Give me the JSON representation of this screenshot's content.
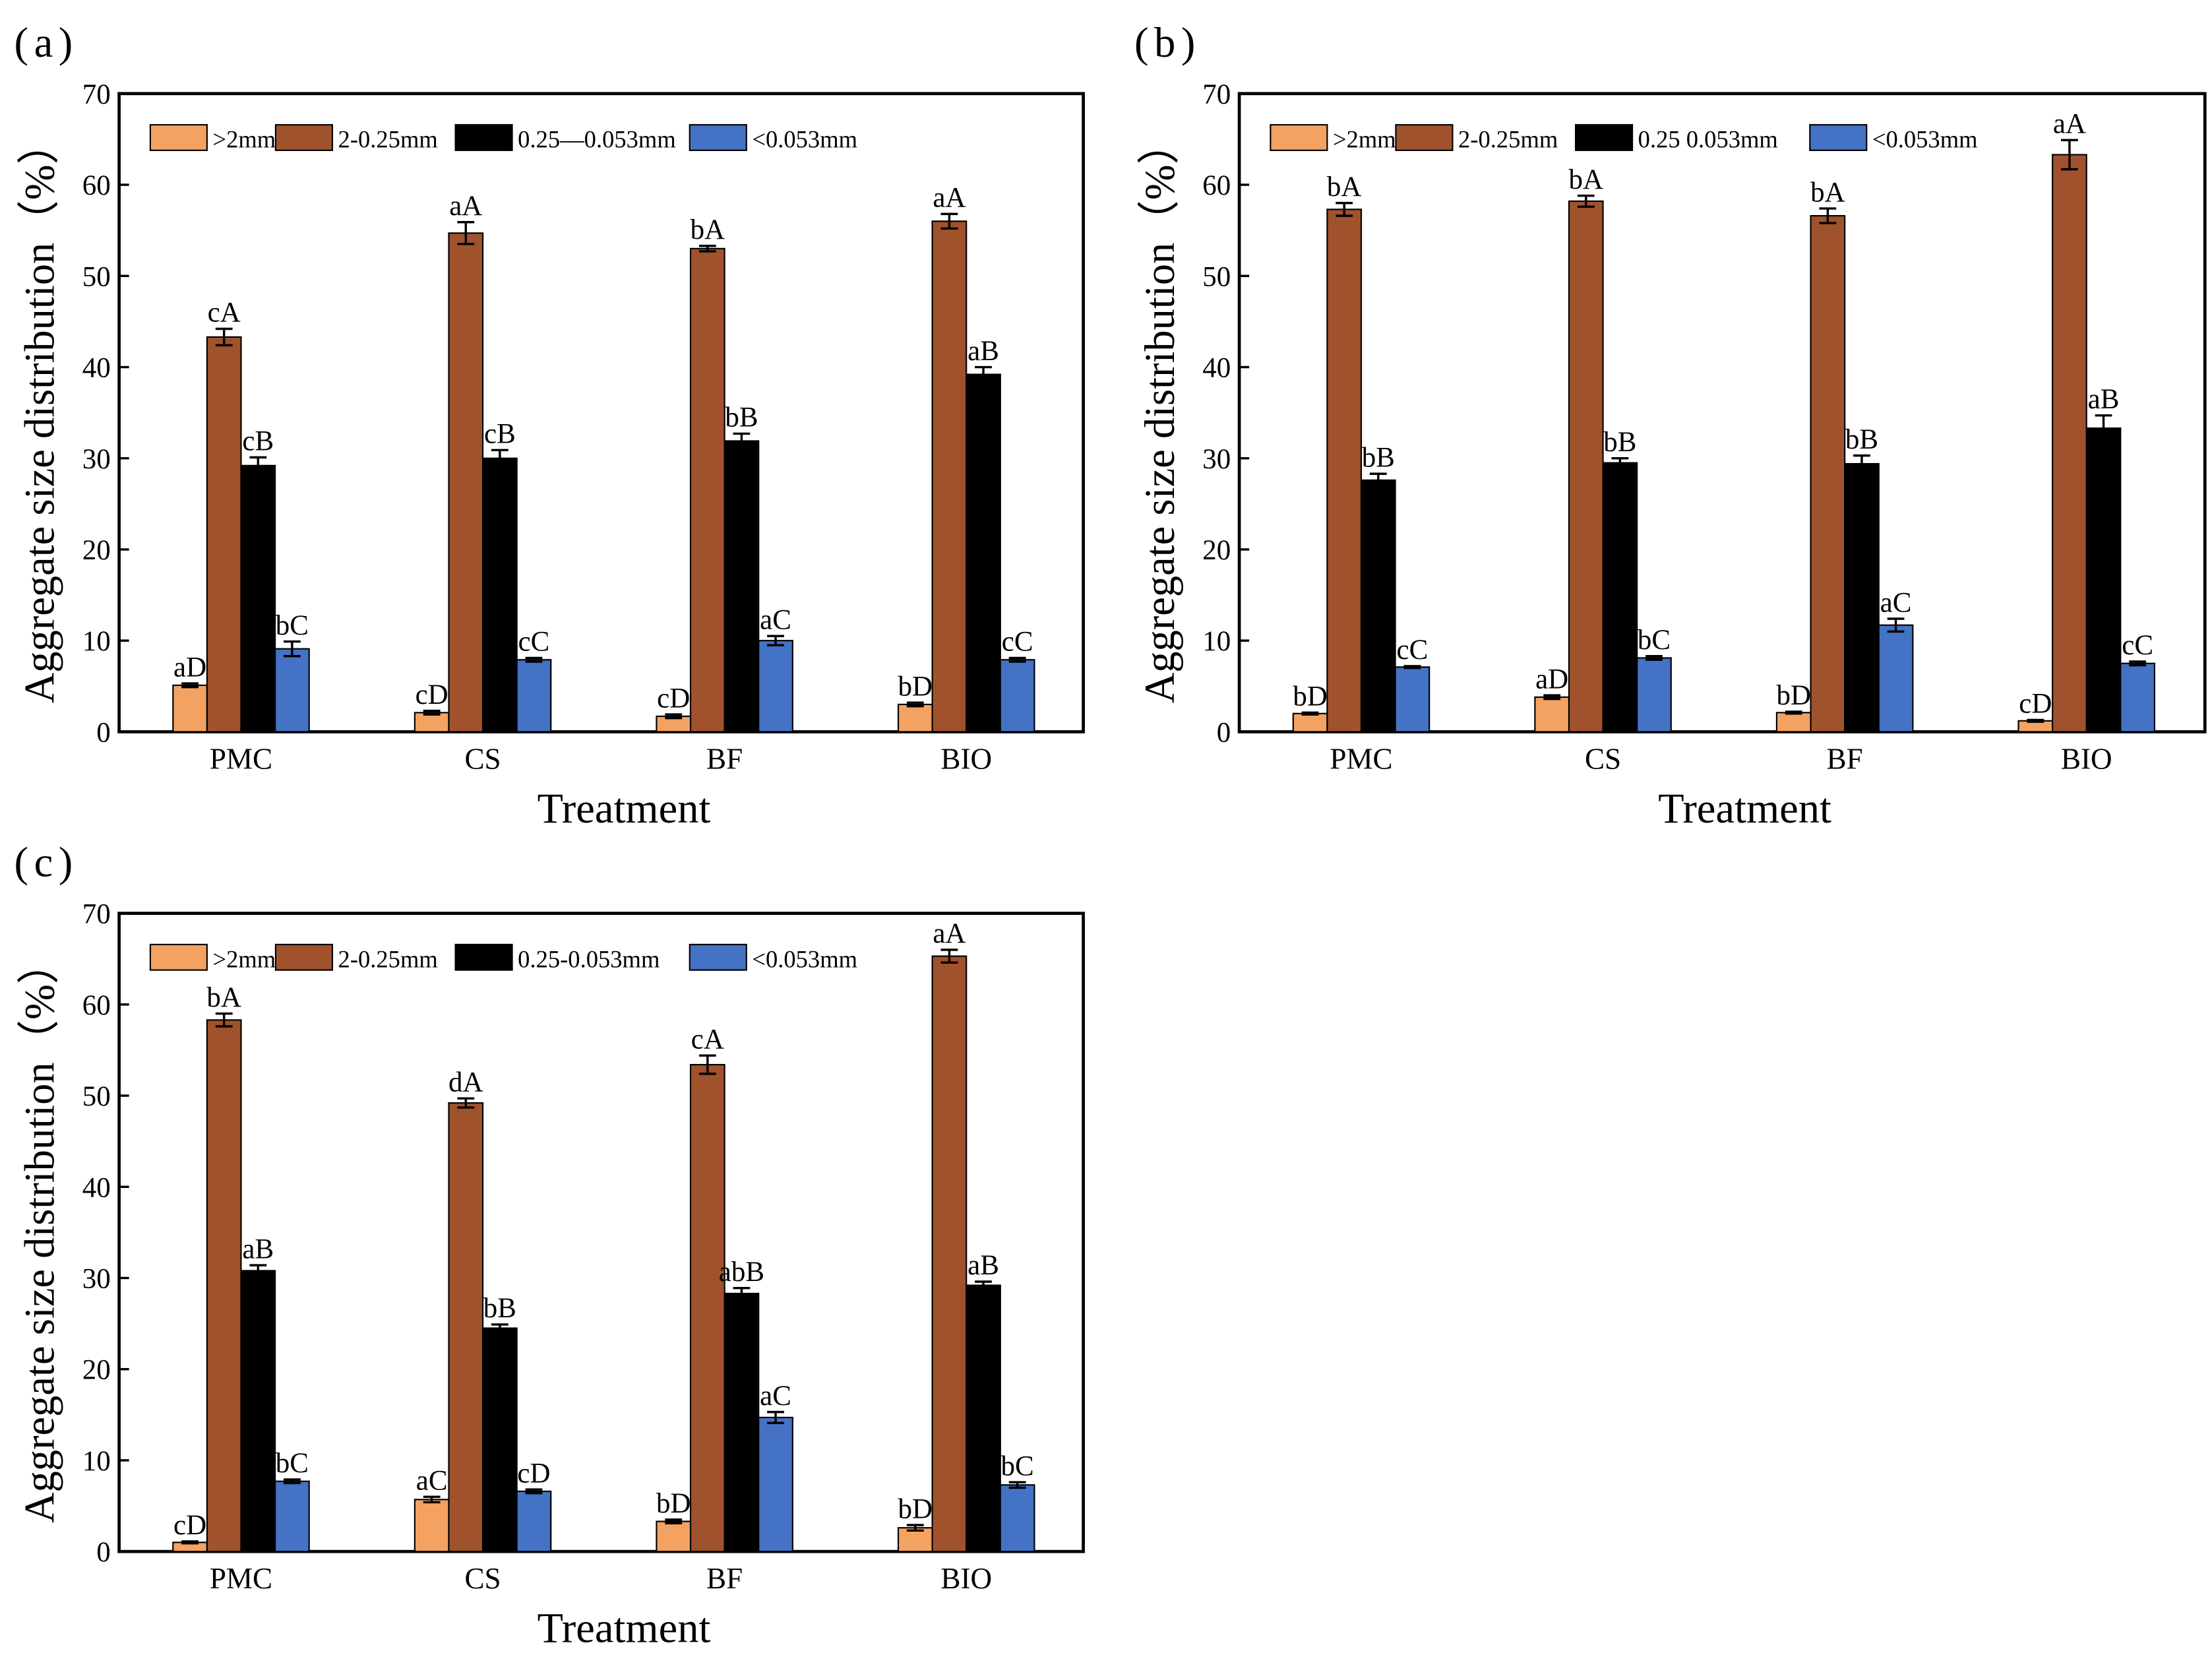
{
  "chart_data": [
    {
      "panel_label": "(a)",
      "type": "bar",
      "categories": [
        "PMC",
        "CS",
        "BF",
        "BIO"
      ],
      "xlabel": "Treatment",
      "ylabel": "Aggregate size distribution（%）",
      "ylim": [
        0,
        70
      ],
      "yticks": [
        "0",
        "10",
        "20",
        "30",
        "40",
        "50",
        "60",
        "70"
      ],
      "legend_position": "top-left",
      "series": [
        {
          "name": ">2mm",
          "color": "#F4A261",
          "values": [
            5.1,
            2.1,
            1.7,
            3.0
          ],
          "errors": [
            0.2,
            0.2,
            0.2,
            0.2
          ],
          "labels": [
            "aD",
            "cD",
            "cD",
            "bD"
          ]
        },
        {
          "name": "2-0.25mm",
          "color": "#A0522D",
          "values": [
            43.3,
            54.7,
            53.0,
            56.0
          ],
          "errors": [
            0.9,
            1.2,
            0.3,
            0.8
          ],
          "labels": [
            "cA",
            "aA",
            "bA",
            "aA"
          ]
        },
        {
          "name": "0.25—0.053mm",
          "color": "#000000",
          "values": [
            29.2,
            30.0,
            31.9,
            39.2
          ],
          "errors": [
            0.9,
            0.9,
            0.8,
            0.8
          ],
          "labels": [
            "cB",
            "cB",
            "bB",
            "aB"
          ]
        },
        {
          "name": "<0.053mm",
          "color": "#4472C4",
          "values": [
            9.1,
            7.9,
            10.0,
            7.9
          ],
          "errors": [
            0.8,
            0.2,
            0.5,
            0.2
          ],
          "labels": [
            "bC",
            "cC",
            "aC",
            "cC"
          ]
        }
      ]
    },
    {
      "panel_label": "(b)",
      "type": "bar",
      "categories": [
        "PMC",
        "CS",
        "BF",
        "BIO"
      ],
      "xlabel": "Treatment",
      "ylabel": "Aggregate size distribution（%）",
      "ylim": [
        0,
        70
      ],
      "yticks": [
        "0",
        "10",
        "20",
        "30",
        "40",
        "50",
        "60",
        "70"
      ],
      "legend_position": "top-left",
      "series": [
        {
          "name": ">2mm",
          "color": "#F4A261",
          "values": [
            2.0,
            3.8,
            2.1,
            1.2
          ],
          "errors": [
            0.1,
            0.2,
            0.1,
            0.1
          ],
          "labels": [
            "bD",
            "aD",
            "bD",
            "cD"
          ]
        },
        {
          "name": "2-0.25mm",
          "color": "#A0522D",
          "values": [
            57.3,
            58.2,
            56.6,
            63.3
          ],
          "errors": [
            0.7,
            0.6,
            0.8,
            1.6
          ],
          "labels": [
            "bA",
            "bA",
            "bA",
            "aA"
          ]
        },
        {
          "name": "0.25 0.053mm",
          "color": "#000000",
          "values": [
            27.6,
            29.5,
            29.4,
            33.3
          ],
          "errors": [
            0.7,
            0.5,
            0.9,
            1.4
          ],
          "labels": [
            "bB",
            "bB",
            "bB",
            "aB"
          ]
        },
        {
          "name": "<0.053mm",
          "color": "#4472C4",
          "values": [
            7.1,
            8.1,
            11.7,
            7.5
          ],
          "errors": [
            0.1,
            0.2,
            0.7,
            0.2
          ],
          "labels": [
            "cC",
            "bC",
            "aC",
            "cC"
          ]
        }
      ]
    },
    {
      "panel_label": "(c)",
      "type": "bar",
      "categories": [
        "PMC",
        "CS",
        "BF",
        "BIO"
      ],
      "xlabel": "Treatment",
      "ylabel": "Aggregate size distribution（%）",
      "ylim": [
        0,
        70
      ],
      "yticks": [
        "0",
        "10",
        "20",
        "30",
        "40",
        "50",
        "60",
        "70"
      ],
      "legend_position": "top-left",
      "series": [
        {
          "name": ">2mm",
          "color": "#F4A261",
          "values": [
            1.0,
            5.7,
            3.3,
            2.6
          ],
          "errors": [
            0.1,
            0.3,
            0.2,
            0.3
          ],
          "labels": [
            "cD",
            "aC",
            "bD",
            "bD"
          ]
        },
        {
          "name": "2-0.25mm",
          "color": "#A0522D",
          "values": [
            58.3,
            49.2,
            53.4,
            65.3
          ],
          "errors": [
            0.7,
            0.5,
            1.0,
            0.7
          ],
          "labels": [
            "bA",
            "dA",
            "cA",
            "aA"
          ]
        },
        {
          "name": "0.25-0.053mm",
          "color": "#000000",
          "values": [
            30.8,
            24.5,
            28.3,
            29.2
          ],
          "errors": [
            0.6,
            0.4,
            0.6,
            0.4
          ],
          "labels": [
            "aB",
            "bB",
            "abB",
            "aB"
          ]
        },
        {
          "name": "<0.053mm",
          "color": "#4472C4",
          "values": [
            7.7,
            6.6,
            14.7,
            7.3
          ],
          "errors": [
            0.2,
            0.2,
            0.6,
            0.3
          ],
          "labels": [
            "bC",
            "cD",
            "aC",
            "bC"
          ]
        }
      ]
    }
  ]
}
